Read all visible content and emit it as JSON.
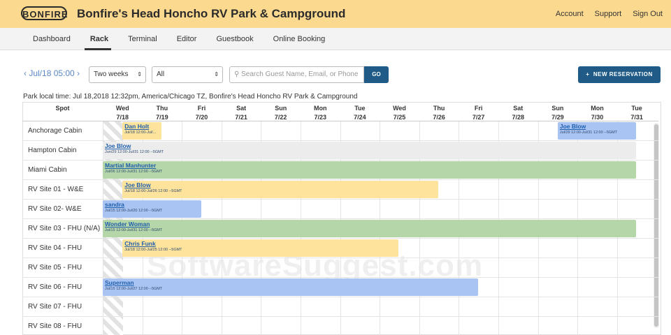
{
  "header": {
    "logo": "BONFIRE",
    "title": "Bonfire's Head Honcho RV Park & Campground",
    "links": [
      "Account",
      "Support",
      "Sign Out"
    ]
  },
  "nav": {
    "tabs": [
      "Dashboard",
      "Rack",
      "Terminal",
      "Editor",
      "Guestbook",
      "Online Booking"
    ]
  },
  "toolbar": {
    "date": "Jul/18 05:00",
    "range": "Two weeks",
    "filter": "All",
    "search_placeholder": "Search Guest Name, Email, or Phone",
    "go": "GO",
    "new_reservation": "NEW RESERVATION"
  },
  "local_time": "Park local time: Jul 18,2018 12:32pm, America/Chicago TZ, Bonfire's Head Honcho RV Park & Campground",
  "watermark": "SoftwareSuggest.com",
  "rack": {
    "spot_header": "Spot",
    "days": [
      {
        "dow": "Wed",
        "date": "7/18"
      },
      {
        "dow": "Thu",
        "date": "7/19"
      },
      {
        "dow": "Fri",
        "date": "7/20"
      },
      {
        "dow": "Sat",
        "date": "7/21"
      },
      {
        "dow": "Sun",
        "date": "7/22"
      },
      {
        "dow": "Mon",
        "date": "7/23"
      },
      {
        "dow": "Tue",
        "date": "7/24"
      },
      {
        "dow": "Wed",
        "date": "7/25"
      },
      {
        "dow": "Thu",
        "date": "7/26"
      },
      {
        "dow": "Fri",
        "date": "7/27"
      },
      {
        "dow": "Sat",
        "date": "7/28"
      },
      {
        "dow": "Sun",
        "date": "7/29"
      },
      {
        "dow": "Mon",
        "date": "7/30"
      },
      {
        "dow": "Tue",
        "date": "7/31"
      }
    ],
    "spots": [
      {
        "name": "Anchorage Cabin",
        "reservations": [
          {
            "guest": "Dan Holt",
            "dates": "Jul/18 12:00-Jul/...",
            "color": "#fde39c",
            "span": [
              0.5,
              1.5
            ]
          },
          {
            "guest": "Joe Blow",
            "dates": "Jul/29 12:00-Jul/31 12:00 --5GMT",
            "color": "#a9c4f2",
            "span": [
              11.5,
              13.5
            ]
          }
        ]
      },
      {
        "name": "Hampton Cabin",
        "reservations": [
          {
            "guest": "Joe Blow",
            "dates": "Jun/29 12:00-Jul/31 12:00 --5GMT",
            "color": "#ececec",
            "span": [
              0,
              13.5
            ]
          }
        ]
      },
      {
        "name": "Miami Cabin",
        "reservations": [
          {
            "guest": "Martial Manhunter",
            "dates": "Jul/06 12:00-Jul/31 12:00 --5GMT",
            "color": "#b5d6a8",
            "span": [
              0,
              13.5
            ]
          }
        ]
      },
      {
        "name": "RV Site 01 - W&E",
        "reservations": [
          {
            "guest": "Joe Blow",
            "dates": "Jul/18 12:00-Jul/26 12:00 --5GMT",
            "color": "#fde39c",
            "span": [
              0.5,
              8.5
            ]
          }
        ]
      },
      {
        "name": "RV Site 02- W&E",
        "reservations": [
          {
            "guest": "sandra",
            "dates": "Jul/15 12:00-Jul/20 12:00 --5GMT",
            "color": "#a9c4f2",
            "span": [
              0,
              2.5
            ]
          }
        ]
      },
      {
        "name": "RV Site 03 - FHU (N/A)",
        "reservations": [
          {
            "guest": "Wonder Woman",
            "dates": "Jul/15 12:00-Jul/31 12:00 --5GMT",
            "color": "#b5d6a8",
            "span": [
              0,
              13.5
            ]
          }
        ]
      },
      {
        "name": "RV Site 04 - FHU",
        "reservations": [
          {
            "guest": "Chris Funk",
            "dates": "Jul/18 12:00-Jul/25 12:00 --5GMT",
            "color": "#fde39c",
            "span": [
              0.5,
              7.5
            ]
          }
        ]
      },
      {
        "name": "RV Site 05 - FHU",
        "reservations": []
      },
      {
        "name": "RV Site 06 - FHU",
        "reservations": [
          {
            "guest": "Superman",
            "dates": "Jul/15 12:00-Jul/27 12:00 --5GMT",
            "color": "#a9c4f2",
            "span": [
              0,
              9.5
            ]
          }
        ]
      },
      {
        "name": "RV Site 07 - FHU",
        "reservations": []
      },
      {
        "name": "RV Site 08 - FHU",
        "reservations": []
      }
    ]
  }
}
